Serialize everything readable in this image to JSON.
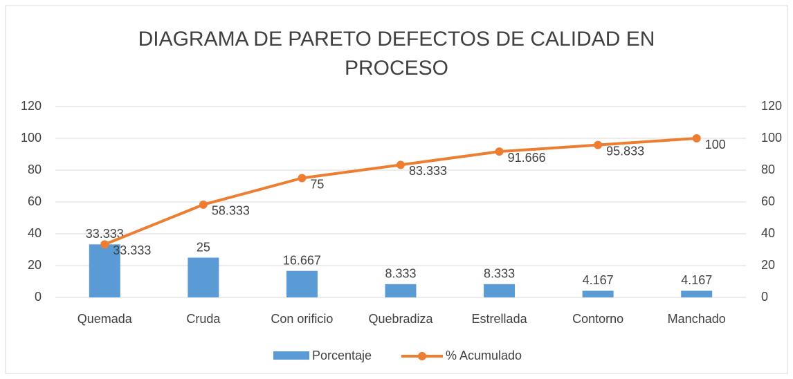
{
  "chart_data": {
    "type": "bar_line",
    "title": "DIAGRAMA DE PARETO DEFECTOS DE CALIDAD EN PROCESO",
    "categories": [
      "Quemada",
      "Cruda",
      "Con orificio",
      "Quebradiza",
      "Estrellada",
      "Contorno",
      "Manchado"
    ],
    "series": [
      {
        "name": "Porcentaje",
        "type": "bar",
        "color": "#5b9bd5",
        "values": [
          33.333,
          25,
          16.667,
          8.333,
          8.333,
          4.167,
          4.167
        ]
      },
      {
        "name": "% Acumulado",
        "type": "line",
        "axis": "y2",
        "color": "#ed7d31",
        "values": [
          33.333,
          58.333,
          75,
          83.333,
          91.666,
          95.833,
          100
        ]
      }
    ],
    "ylim": [
      0,
      120
    ],
    "yticks": [
      0,
      20,
      40,
      60,
      80,
      100,
      120
    ],
    "y2lim": [
      0,
      120
    ],
    "y2ticks": [
      0,
      20,
      40,
      60,
      80,
      100,
      120
    ],
    "grid": true,
    "legend": "bottom"
  }
}
